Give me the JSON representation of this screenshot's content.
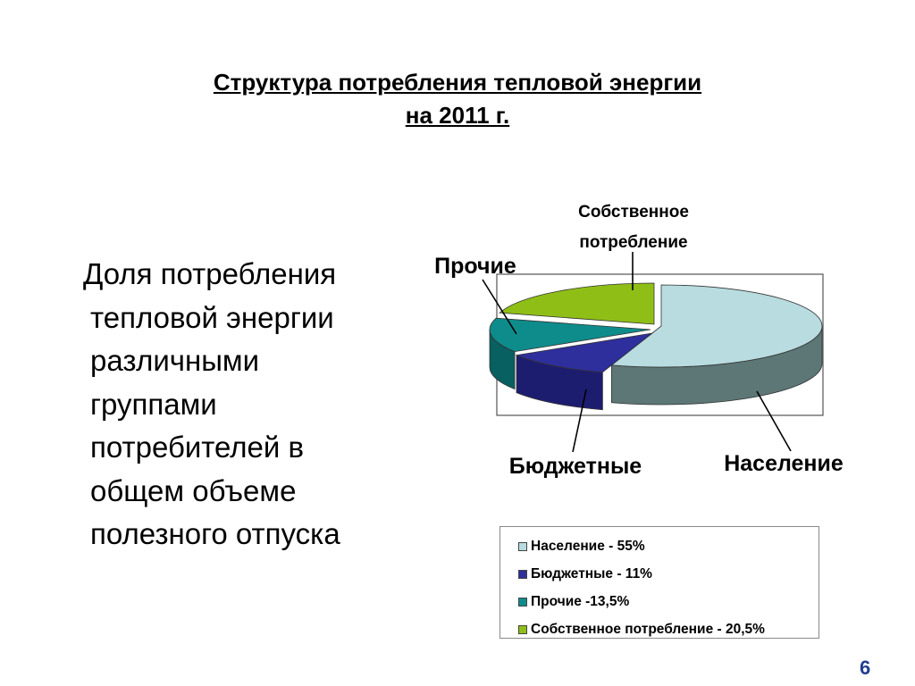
{
  "title": {
    "line1": "Структура потребления тепловой энергии",
    "line2": "на 2011 г."
  },
  "body_text": {
    "lines": [
      "Доля потребления",
      "тепловой энергии",
      "различными",
      "группами",
      "потребителей в",
      "общем объеме",
      "полезного отпуска"
    ]
  },
  "chart_data": {
    "type": "pie",
    "style": "3d-exploded-perspective",
    "categories": [
      "Население",
      "Бюджетные",
      "Прочие",
      "Собственное потребление"
    ],
    "values": [
      55,
      11,
      13.5,
      20.5
    ],
    "colors": [
      "#b8dcdf",
      "#2e2e9c",
      "#0e8c8c",
      "#8fbf16"
    ],
    "side_colors": [
      "#5d7676",
      "#1d1d70",
      "#086060",
      "#5a7c0a"
    ],
    "callouts": {
      "naselenie": "Население",
      "byudzhetnye": "Бюджетные",
      "prochie": "Прочие",
      "sobstvennoe_line1": "Собственное",
      "sobstvennoe_line2": "потребление"
    },
    "legend_placement": "bottom",
    "legend": [
      "Население - 55%",
      "Бюджетные - 11%",
      "Прочие -13,5%",
      "Собственное потребление - 20,5%"
    ]
  },
  "page_number": "6"
}
